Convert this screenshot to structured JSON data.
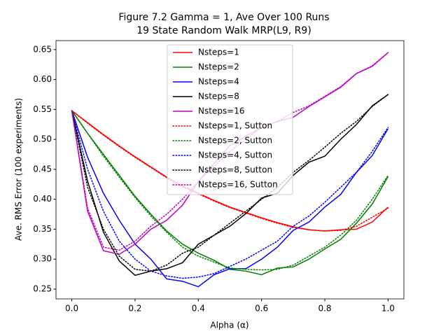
{
  "chart_data": {
    "type": "line",
    "title": "Figure 7.2 Gamma = 1, Ave Over 100 Runs",
    "subtitle": "19 State Random Walk MRP(L9, R9)",
    "x_label": "Alpha (α)",
    "y_label": "Ave. RMS Error (100 experiments)",
    "x": [
      0,
      0.05,
      0.1,
      0.15,
      0.2,
      0.25,
      0.3,
      0.35,
      0.4,
      0.45,
      0.5,
      0.55,
      0.6,
      0.65,
      0.7,
      0.75,
      0.8,
      0.85,
      0.9,
      0.95,
      1.0
    ],
    "xlim": [
      -0.05,
      1.05
    ],
    "xticks": [
      {
        "value": 0,
        "label": "0.0"
      },
      0.2,
      0.4,
      0.6,
      0.8,
      {
        "value": 1.0,
        "label": "1.0"
      }
    ],
    "ylim": [
      0.2336,
      0.665
    ],
    "yticks": [
      0.25,
      {
        "value": 0.3,
        "label": "0.30"
      },
      0.35,
      {
        "value": 0.4,
        "label": "0.40"
      },
      0.45,
      {
        "value": 0.5,
        "label": "0.50"
      },
      0.55,
      {
        "value": 0.6,
        "label": "0.60"
      },
      0.65
    ],
    "legend": "upper center",
    "grid": false,
    "series": [
      {
        "name": "Nsteps=1",
        "color": "#ff0000",
        "style": "solid",
        "values": [
          0.548,
          0.528,
          0.508,
          0.489,
          0.471,
          0.454,
          0.437,
          0.422,
          0.41,
          0.398,
          0.387,
          0.378,
          0.369,
          0.361,
          0.354,
          0.349,
          0.347,
          0.349,
          0.35,
          0.362,
          0.387
        ]
      },
      {
        "name": "Nsteps=2",
        "color": "#008000",
        "style": "solid",
        "values": [
          0.548,
          0.51,
          0.475,
          0.44,
          0.405,
          0.375,
          0.347,
          0.325,
          0.31,
          0.298,
          0.283,
          0.28,
          0.274,
          0.285,
          0.287,
          0.3,
          0.317,
          0.333,
          0.36,
          0.392,
          0.438
        ]
      },
      {
        "name": "Nsteps=4",
        "color": "#0000ff",
        "style": "solid",
        "values": [
          0.548,
          0.47,
          0.41,
          0.365,
          0.325,
          0.3,
          0.267,
          0.263,
          0.254,
          0.274,
          0.284,
          0.284,
          0.3,
          0.32,
          0.348,
          0.362,
          0.387,
          0.408,
          0.445,
          0.473,
          0.518
        ]
      },
      {
        "name": "Nsteps=8",
        "color": "#000000",
        "style": "solid",
        "values": [
          0.548,
          0.43,
          0.345,
          0.297,
          0.273,
          0.28,
          0.284,
          0.294,
          0.325,
          0.34,
          0.355,
          0.376,
          0.402,
          0.41,
          0.44,
          0.462,
          0.472,
          0.5,
          0.525,
          0.556,
          0.575
        ]
      },
      {
        "name": "Nsteps=16",
        "color": "#bf00bf",
        "style": "solid",
        "values": [
          0.548,
          0.38,
          0.314,
          0.308,
          0.325,
          0.35,
          0.365,
          0.39,
          0.43,
          0.46,
          0.49,
          0.505,
          0.52,
          0.53,
          0.537,
          0.555,
          0.571,
          0.587,
          0.61,
          0.622,
          0.645
        ]
      },
      {
        "name": "Nsteps=1, Sutton",
        "color": "#ff0000",
        "style": "dotted",
        "values": [
          0.548,
          0.527,
          0.507,
          0.488,
          0.47,
          0.453,
          0.436,
          0.421,
          0.409,
          0.397,
          0.386,
          0.377,
          0.368,
          0.36,
          0.353,
          0.349,
          0.347,
          0.348,
          0.355,
          0.37,
          0.385
        ]
      },
      {
        "name": "Nsteps=2, Sutton",
        "color": "#008000",
        "style": "dotted",
        "values": [
          0.548,
          0.51,
          0.472,
          0.437,
          0.403,
          0.372,
          0.345,
          0.32,
          0.305,
          0.295,
          0.285,
          0.283,
          0.282,
          0.283,
          0.29,
          0.305,
          0.32,
          0.34,
          0.365,
          0.4,
          0.44
        ]
      },
      {
        "name": "Nsteps=4, Sutton",
        "color": "#0000ff",
        "style": "dotted",
        "values": [
          0.548,
          0.45,
          0.38,
          0.33,
          0.3,
          0.28,
          0.272,
          0.268,
          0.27,
          0.276,
          0.288,
          0.3,
          0.315,
          0.33,
          0.355,
          0.372,
          0.395,
          0.42,
          0.445,
          0.48,
          0.52
        ]
      },
      {
        "name": "Nsteps=8, Sutton",
        "color": "#000000",
        "style": "dotted",
        "values": [
          0.548,
          0.42,
          0.35,
          0.305,
          0.283,
          0.28,
          0.29,
          0.31,
          0.32,
          0.34,
          0.36,
          0.38,
          0.4,
          0.42,
          0.445,
          0.465,
          0.487,
          0.51,
          0.53,
          0.555,
          0.575
        ]
      },
      {
        "name": "Nsteps=16, Sutton",
        "color": "#bf00bf",
        "style": "dotted",
        "values": [
          0.548,
          0.385,
          0.32,
          0.315,
          0.33,
          0.355,
          0.375,
          0.4,
          0.43,
          0.455,
          0.48,
          0.5,
          0.52,
          0.53,
          0.545,
          0.556,
          0.572,
          0.588,
          0.61,
          0.623,
          0.645
        ]
      }
    ]
  }
}
